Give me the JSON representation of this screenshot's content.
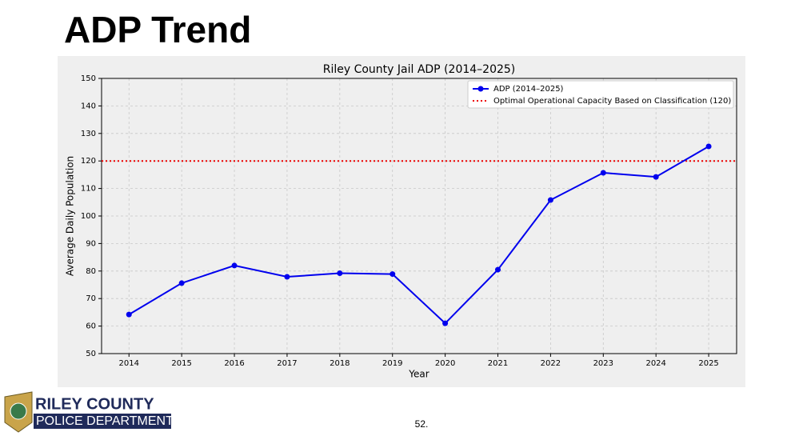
{
  "slide_title": "ADP Trend",
  "logo": {
    "line1": "RILEY COUNTY",
    "line2": "POLICE DEPARTMENT"
  },
  "page_number": "52.",
  "chart_data": {
    "type": "line",
    "title": "Riley County Jail ADP (2014–2025)",
    "x_label": "Year",
    "y_label": "Average Daily Population",
    "x": [
      2014,
      2015,
      2016,
      2017,
      2018,
      2019,
      2020,
      2021,
      2022,
      2023,
      2024,
      2025
    ],
    "series": [
      {
        "name": "ADP (2014–2025)",
        "color": "#0000ee",
        "values": [
          64.2,
          75.6,
          82,
          77.9,
          79.2,
          78.9,
          61,
          80.5,
          105.8,
          115.7,
          114.2,
          125.3
        ]
      }
    ],
    "reference_line": {
      "name": "Optimal Operational Capacity Based on Classification (120)",
      "value": 120,
      "color": "#ee0000"
    },
    "xlim": [
      2013.48,
      2025.53
    ],
    "xticks": [
      2014,
      2015,
      2016,
      2017,
      2018,
      2019,
      2020,
      2021,
      2022,
      2023,
      2024,
      2025
    ],
    "ylim": [
      50,
      150
    ],
    "yticks": [
      50,
      60,
      70,
      80,
      90,
      100,
      110,
      120,
      130,
      140,
      150
    ],
    "grid": true,
    "legend": "upper-right"
  }
}
